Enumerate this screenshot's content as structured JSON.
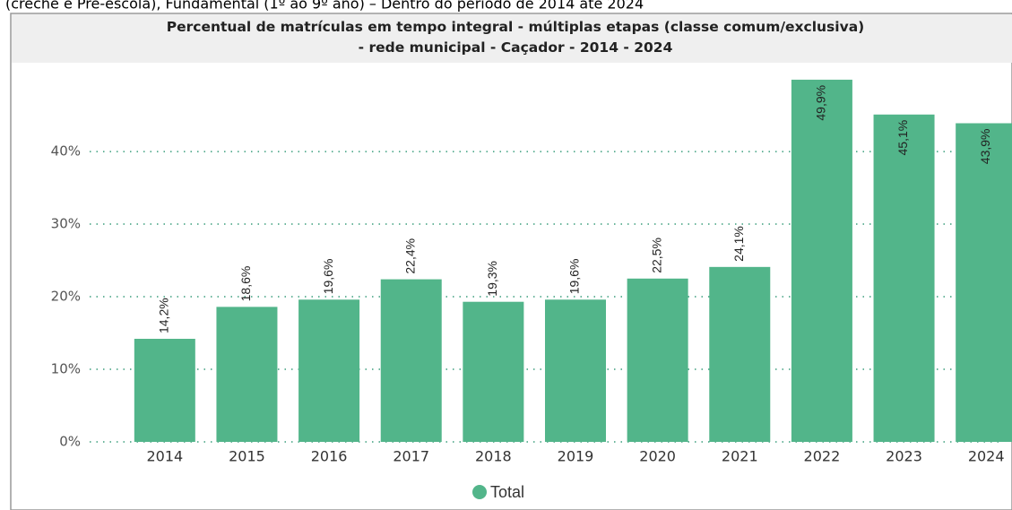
{
  "header_text": "(creche e Pré-escola), Fundamental (1º ao 9º ano) – Dentro do período de 2014 até 2024",
  "chart_data": {
    "type": "bar",
    "title": "Percentual de matrículas em tempo integral - múltiplas etapas (classe comum/exclusiva) - rede municipal - Caçador - 2014 - 2024",
    "categories": [
      "2014",
      "2015",
      "2016",
      "2017",
      "2018",
      "2019",
      "2020",
      "2021",
      "2022",
      "2023",
      "2024"
    ],
    "series": [
      {
        "name": "Total",
        "color": "#52b58a",
        "values": [
          14.2,
          18.6,
          19.6,
          22.4,
          19.3,
          19.6,
          22.5,
          24.1,
          49.9,
          45.1,
          43.9
        ],
        "value_labels": [
          "14,2%",
          "18,6%",
          "19,6%",
          "22,4%",
          "19,3%",
          "19,6%",
          "22,5%",
          "24,1%",
          "49,9%",
          "45,1%",
          "43,9%"
        ]
      }
    ],
    "ylim": [
      0,
      51
    ],
    "yticks": [
      {
        "value": 0,
        "label": "0%"
      },
      {
        "value": 10,
        "label": "10%"
      },
      {
        "value": 20,
        "label": "20%"
      },
      {
        "value": 30,
        "label": "30%"
      },
      {
        "value": 40,
        "label": "40%"
      }
    ],
    "grid": true,
    "legend": "bottom"
  }
}
